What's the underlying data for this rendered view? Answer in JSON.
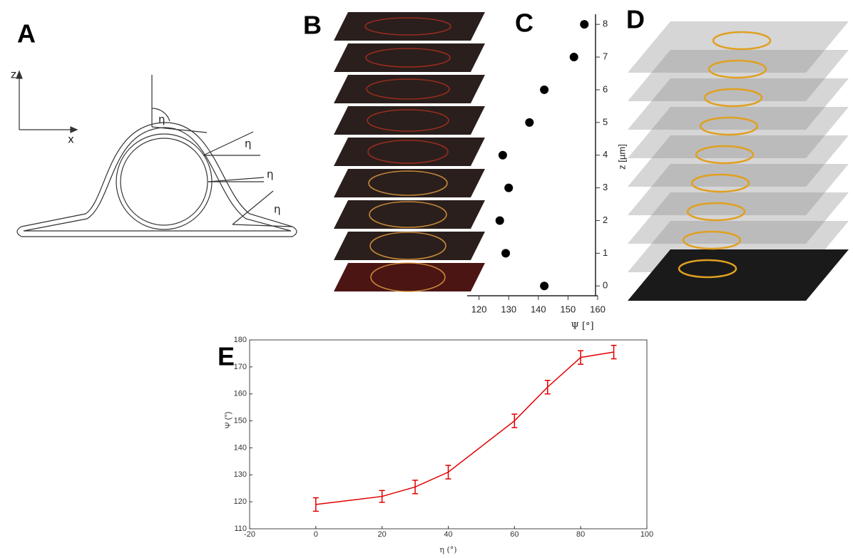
{
  "panel_labels": [
    "A",
    "B",
    "C",
    "D",
    "E"
  ],
  "diagram": {
    "axis_labels": [
      "z",
      "x"
    ],
    "angle_labels": [
      "η",
      "η",
      "η",
      "η"
    ]
  },
  "chart_data": [
    {
      "type": "scatter",
      "x_label": "Ψ [°]",
      "y_label": "z [µm]",
      "x": [
        142,
        129,
        127,
        130,
        128,
        137,
        142,
        152,
        155.5
      ],
      "y": [
        0,
        1,
        2,
        3,
        4,
        5,
        6,
        7,
        8
      ],
      "color": "#000000",
      "xlim": [
        116,
        160
      ],
      "ylim": [
        -0.3,
        8.2
      ],
      "xticks": [
        120,
        130,
        140,
        150,
        160
      ],
      "yticks": [
        0,
        1,
        2,
        3,
        4,
        5,
        6,
        7,
        8
      ],
      "y_axis_side": "right"
    },
    {
      "type": "line",
      "x_label": "η (°)",
      "y_label": "Ψ (°)",
      "x": [
        0,
        20,
        30,
        40,
        60,
        70,
        80,
        90
      ],
      "values": [
        119,
        122,
        125.5,
        131,
        150,
        162.5,
        173.5,
        175.5
      ],
      "errors": [
        2.5,
        2.2,
        2.5,
        2.5,
        2.5,
        2.5,
        2.5,
        2.5
      ],
      "color": "#e00000",
      "xlim": [
        -20,
        100
      ],
      "ylim": [
        110,
        180
      ],
      "xticks": [
        -20,
        0,
        20,
        40,
        60,
        80,
        100
      ],
      "yticks": [
        110,
        120,
        130,
        140,
        150,
        160,
        170,
        180
      ],
      "y_axis_side": "left"
    }
  ]
}
